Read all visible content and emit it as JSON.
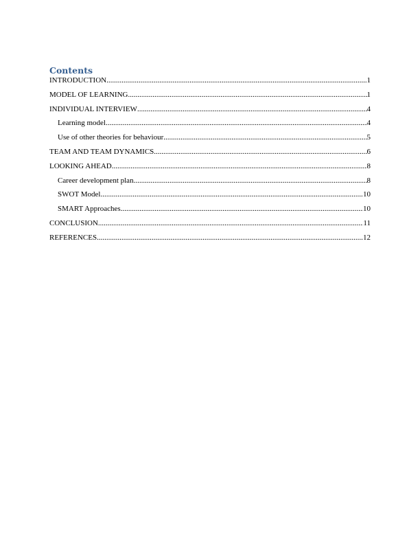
{
  "heading": "Contents",
  "entries": [
    {
      "label": "INTRODUCTION",
      "page": "1",
      "level": 1
    },
    {
      "label": "MODEL OF LEARNING",
      "page": "1",
      "level": 1
    },
    {
      "label": "INDIVIDUAL INTERVIEW",
      "page": "4",
      "level": 1
    },
    {
      "label": "Learning model",
      "page": "4",
      "level": 2
    },
    {
      "label": "Use of other theories for behaviour",
      "page": "5",
      "level": 2
    },
    {
      "label": "TEAM AND TEAM DYNAMICS",
      "page": "6",
      "level": 1
    },
    {
      "label": "LOOKING AHEAD",
      "page": "8",
      "level": 1
    },
    {
      "label": "Career development plan",
      "page": "8",
      "level": 2
    },
    {
      "label": "SWOT Model",
      "page": "10",
      "level": 2
    },
    {
      "label": "SMART Approaches",
      "page": "10",
      "level": 2
    },
    {
      "label": "CONCLUSION",
      "page": "11",
      "level": 1
    },
    {
      "label": "REFERENCES",
      "page": "12",
      "level": 1
    }
  ],
  "colors": {
    "heading": "#365f91"
  }
}
